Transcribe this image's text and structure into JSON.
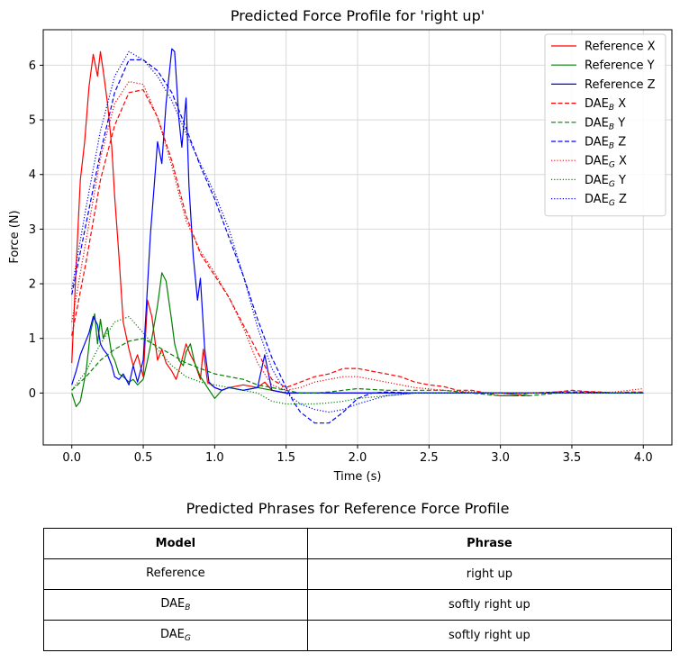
{
  "chart_data": {
    "type": "line",
    "title": "Predicted Force Profile for 'right up'",
    "xlabel": "Time (s)",
    "ylabel": "Force (N)",
    "xlim": [
      -0.2,
      4.2
    ],
    "ylim": [
      -0.95,
      6.65
    ],
    "xticks": [
      0.0,
      0.5,
      1.0,
      1.5,
      2.0,
      2.5,
      3.0,
      3.5,
      4.0
    ],
    "xtick_labels": [
      "0.0",
      "0.5",
      "1.0",
      "1.5",
      "2.0",
      "2.5",
      "3.0",
      "3.5",
      "4.0"
    ],
    "yticks": [
      0,
      1,
      2,
      3,
      4,
      5,
      6
    ],
    "ytick_labels": [
      "0",
      "1",
      "2",
      "3",
      "4",
      "5",
      "6"
    ],
    "grid": true,
    "legend_position": "top-right",
    "series": [
      {
        "name": "Reference X",
        "label_main": "Reference X",
        "label_sub": "",
        "label_suffix": "",
        "color": "#ff0000",
        "style": "solid",
        "x": [
          0.0,
          0.03,
          0.06,
          0.09,
          0.12,
          0.15,
          0.18,
          0.2,
          0.22,
          0.25,
          0.28,
          0.3,
          0.33,
          0.36,
          0.4,
          0.43,
          0.46,
          0.5,
          0.53,
          0.56,
          0.6,
          0.63,
          0.66,
          0.7,
          0.73,
          0.76,
          0.8,
          0.83,
          0.86,
          0.9,
          0.92,
          0.95,
          1.0,
          1.05,
          1.1,
          1.2,
          1.3,
          1.35,
          1.4,
          1.5,
          2.0,
          2.5,
          3.0,
          3.2
        ],
        "y": [
          0.55,
          2.3,
          3.9,
          4.6,
          5.6,
          6.2,
          5.8,
          6.25,
          5.9,
          5.3,
          4.5,
          3.6,
          2.5,
          1.3,
          0.8,
          0.5,
          0.7,
          0.3,
          1.7,
          1.4,
          0.6,
          0.8,
          0.55,
          0.4,
          0.25,
          0.5,
          0.9,
          0.7,
          0.55,
          0.25,
          0.8,
          0.2,
          0.1,
          0.05,
          0.1,
          0.15,
          0.1,
          0.2,
          0.05,
          0.0,
          0.0,
          0.0,
          0.0,
          0.0
        ]
      },
      {
        "name": "Reference Y",
        "label_main": "Reference Y",
        "label_sub": "",
        "label_suffix": "",
        "color": "#008000",
        "style": "solid",
        "x": [
          0.0,
          0.03,
          0.06,
          0.1,
          0.13,
          0.16,
          0.18,
          0.2,
          0.22,
          0.25,
          0.28,
          0.3,
          0.33,
          0.36,
          0.4,
          0.43,
          0.46,
          0.5,
          0.53,
          0.56,
          0.6,
          0.63,
          0.66,
          0.7,
          0.72,
          0.75,
          0.78,
          0.8,
          0.83,
          0.86,
          0.9,
          0.95,
          1.0,
          1.05,
          1.1,
          1.2,
          1.3,
          1.4,
          1.5,
          2.0,
          2.5,
          3.0,
          3.2
        ],
        "y": [
          0.0,
          -0.25,
          -0.15,
          0.4,
          1.1,
          1.45,
          0.9,
          1.35,
          1.0,
          1.2,
          0.7,
          0.6,
          0.35,
          0.3,
          0.2,
          0.25,
          0.15,
          0.25,
          0.6,
          1.0,
          1.6,
          2.2,
          2.05,
          1.3,
          0.9,
          0.6,
          0.5,
          0.75,
          0.9,
          0.55,
          0.3,
          0.1,
          -0.1,
          0.05,
          0.1,
          0.05,
          0.1,
          0.05,
          0.0,
          0.0,
          0.0,
          0.0,
          -0.05
        ]
      },
      {
        "name": "Reference Z",
        "label_main": "Reference Z",
        "label_sub": "",
        "label_suffix": "",
        "color": "#0000ff",
        "style": "solid",
        "x": [
          0.0,
          0.03,
          0.06,
          0.09,
          0.12,
          0.15,
          0.18,
          0.2,
          0.22,
          0.25,
          0.28,
          0.3,
          0.33,
          0.36,
          0.4,
          0.43,
          0.46,
          0.5,
          0.52,
          0.55,
          0.58,
          0.6,
          0.63,
          0.66,
          0.68,
          0.7,
          0.72,
          0.75,
          0.77,
          0.8,
          0.82,
          0.85,
          0.88,
          0.9,
          0.93,
          0.96,
          1.0,
          1.05,
          1.1,
          1.2,
          1.3,
          1.35,
          1.4,
          1.5,
          2.0,
          2.5,
          3.0,
          3.5,
          4.0
        ],
        "y": [
          0.15,
          0.4,
          0.7,
          0.9,
          1.1,
          1.4,
          1.25,
          0.9,
          0.8,
          0.7,
          0.5,
          0.3,
          0.25,
          0.35,
          0.15,
          0.5,
          0.2,
          0.6,
          1.5,
          2.9,
          3.9,
          4.6,
          4.2,
          5.3,
          5.8,
          6.3,
          6.25,
          5.0,
          4.5,
          5.4,
          3.8,
          2.5,
          1.7,
          2.1,
          0.8,
          0.2,
          0.1,
          0.05,
          0.1,
          0.05,
          0.1,
          0.7,
          0.05,
          0.0,
          0.0,
          0.0,
          0.0,
          0.0,
          0.0
        ]
      },
      {
        "name": "DAE_B X",
        "label_main": "DAE",
        "label_sub": "B",
        "label_suffix": " X",
        "color": "#ff0000",
        "style": "dashed",
        "x": [
          0.0,
          0.1,
          0.2,
          0.3,
          0.4,
          0.5,
          0.6,
          0.7,
          0.8,
          0.9,
          1.0,
          1.1,
          1.2,
          1.3,
          1.4,
          1.5,
          1.6,
          1.7,
          1.8,
          1.9,
          2.0,
          2.1,
          2.2,
          2.3,
          2.4,
          2.5,
          2.6,
          2.7,
          2.8,
          2.9,
          3.0,
          3.1,
          3.2,
          3.3,
          3.4,
          3.5,
          3.6,
          3.7,
          3.8,
          3.9,
          4.0
        ],
        "y": [
          1.05,
          2.4,
          3.9,
          4.9,
          5.5,
          5.55,
          5.05,
          4.25,
          3.25,
          2.55,
          2.15,
          1.75,
          1.25,
          0.75,
          0.25,
          0.1,
          0.2,
          0.3,
          0.35,
          0.45,
          0.45,
          0.4,
          0.35,
          0.3,
          0.2,
          0.15,
          0.12,
          0.05,
          0.05,
          0.0,
          -0.05,
          -0.05,
          0.0,
          0.0,
          0.02,
          0.05,
          0.03,
          0.02,
          0.0,
          0.02,
          0.02
        ]
      },
      {
        "name": "DAE_B Y",
        "label_main": "DAE",
        "label_sub": "B",
        "label_suffix": " Y",
        "color": "#008000",
        "style": "dashed",
        "x": [
          0.0,
          0.1,
          0.2,
          0.3,
          0.4,
          0.5,
          0.6,
          0.7,
          0.8,
          0.9,
          1.0,
          1.1,
          1.2,
          1.3,
          1.4,
          1.5,
          1.6,
          1.7,
          1.8,
          1.9,
          2.0,
          2.2,
          2.4,
          2.6,
          2.8,
          3.0,
          3.2,
          3.4,
          3.6,
          3.8,
          4.0
        ],
        "y": [
          0.05,
          0.3,
          0.6,
          0.8,
          0.95,
          1.0,
          0.85,
          0.7,
          0.55,
          0.45,
          0.35,
          0.3,
          0.25,
          0.15,
          0.1,
          0.05,
          0.0,
          0.0,
          0.02,
          0.05,
          0.08,
          0.05,
          0.05,
          0.05,
          0.0,
          -0.05,
          -0.05,
          0.0,
          0.0,
          0.0,
          0.0
        ]
      },
      {
        "name": "DAE_B Z",
        "label_main": "DAE",
        "label_sub": "B",
        "label_suffix": " Z",
        "color": "#0000ff",
        "style": "dashed",
        "x": [
          0.0,
          0.1,
          0.2,
          0.3,
          0.4,
          0.5,
          0.6,
          0.7,
          0.8,
          0.9,
          1.0,
          1.1,
          1.2,
          1.3,
          1.4,
          1.5,
          1.55,
          1.6,
          1.7,
          1.8,
          1.9,
          2.0,
          2.1,
          2.2,
          2.4,
          2.6,
          2.8,
          3.0,
          3.2,
          3.4,
          3.6,
          3.8,
          4.0
        ],
        "y": [
          1.8,
          3.1,
          4.4,
          5.5,
          6.1,
          6.1,
          5.9,
          5.5,
          4.85,
          4.15,
          3.55,
          2.85,
          2.15,
          1.35,
          0.65,
          0.1,
          -0.15,
          -0.35,
          -0.55,
          -0.55,
          -0.35,
          -0.1,
          0.0,
          0.02,
          0.0,
          0.0,
          0.0,
          0.0,
          0.0,
          0.02,
          0.02,
          0.0,
          0.0
        ]
      },
      {
        "name": "DAE_G X",
        "label_main": "DAE",
        "label_sub": "G",
        "label_suffix": " X",
        "color": "#ff0000",
        "style": "dotted",
        "x": [
          0.0,
          0.1,
          0.2,
          0.3,
          0.4,
          0.5,
          0.6,
          0.7,
          0.8,
          0.9,
          1.0,
          1.1,
          1.2,
          1.3,
          1.4,
          1.5,
          1.6,
          1.7,
          1.8,
          1.9,
          2.0,
          2.1,
          2.2,
          2.4,
          2.6,
          2.8,
          3.0,
          3.2,
          3.4,
          3.6,
          3.8,
          4.0
        ],
        "y": [
          1.3,
          2.8,
          4.3,
          5.3,
          5.7,
          5.65,
          5.05,
          4.15,
          3.15,
          2.6,
          2.2,
          1.75,
          1.2,
          0.55,
          0.15,
          0.05,
          0.1,
          0.2,
          0.25,
          0.3,
          0.3,
          0.25,
          0.2,
          0.1,
          0.05,
          0.02,
          0.0,
          0.0,
          0.02,
          0.0,
          0.02,
          0.08
        ]
      },
      {
        "name": "DAE_G Y",
        "label_main": "DAE",
        "label_sub": "G",
        "label_suffix": " Y",
        "color": "#008000",
        "style": "dotted",
        "x": [
          0.0,
          0.1,
          0.2,
          0.3,
          0.4,
          0.5,
          0.6,
          0.7,
          0.8,
          0.9,
          1.0,
          1.1,
          1.2,
          1.3,
          1.4,
          1.5,
          1.6,
          1.7,
          1.8,
          1.9,
          2.0,
          2.2,
          2.4,
          2.6,
          2.8,
          3.0,
          3.2,
          3.4,
          3.6,
          3.8,
          4.0
        ],
        "y": [
          0.05,
          0.4,
          0.9,
          1.3,
          1.4,
          1.1,
          0.8,
          0.5,
          0.3,
          0.2,
          0.15,
          0.1,
          0.05,
          0.0,
          -0.15,
          -0.2,
          -0.2,
          -0.2,
          -0.18,
          -0.15,
          -0.1,
          -0.05,
          0.0,
          0.0,
          0.0,
          0.0,
          0.0,
          0.0,
          0.0,
          0.0,
          0.0
        ]
      },
      {
        "name": "DAE_G Z",
        "label_main": "DAE",
        "label_sub": "G",
        "label_suffix": " Z",
        "color": "#0000ff",
        "style": "dotted",
        "x": [
          0.0,
          0.1,
          0.2,
          0.3,
          0.4,
          0.5,
          0.6,
          0.7,
          0.8,
          0.9,
          1.0,
          1.1,
          1.2,
          1.3,
          1.4,
          1.5,
          1.6,
          1.7,
          1.8,
          1.9,
          2.0,
          2.2,
          2.4,
          2.6,
          2.8,
          3.0,
          3.2,
          3.4,
          3.6,
          3.8,
          4.0
        ],
        "y": [
          1.9,
          3.4,
          4.8,
          5.8,
          6.25,
          6.1,
          5.8,
          5.35,
          4.75,
          4.2,
          3.65,
          3.0,
          2.15,
          1.2,
          0.45,
          0.0,
          -0.2,
          -0.3,
          -0.35,
          -0.3,
          -0.2,
          -0.05,
          0.0,
          0.0,
          0.0,
          0.0,
          0.0,
          0.0,
          0.0,
          0.0,
          0.0
        ]
      }
    ]
  },
  "table": {
    "title": "Predicted Phrases for Reference Force Profile",
    "headers": [
      "Model",
      "Phrase"
    ],
    "rows": [
      {
        "model_main": "Reference",
        "model_sub": "",
        "phrase": "right up"
      },
      {
        "model_main": "DAE",
        "model_sub": "B",
        "phrase": "softly right up"
      },
      {
        "model_main": "DAE",
        "model_sub": "G",
        "phrase": "softly right up"
      }
    ]
  }
}
